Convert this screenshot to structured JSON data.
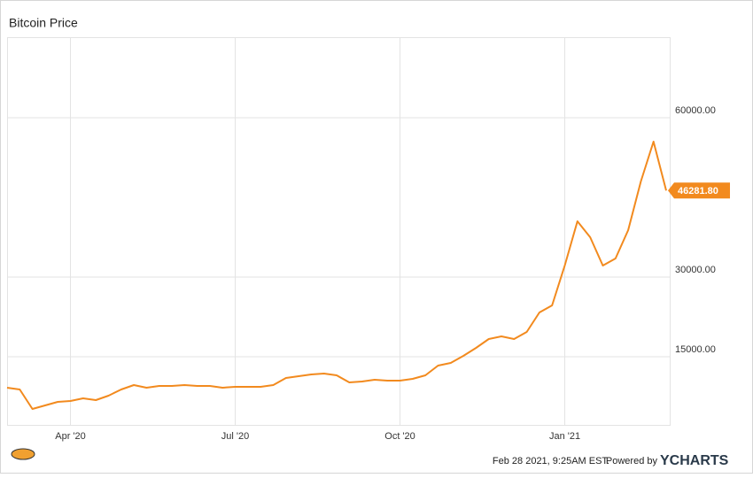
{
  "chart_data": {
    "type": "line",
    "title": "Bitcoin Price",
    "categories": [
      null,
      null,
      null,
      null,
      null,
      "Apr '20",
      null,
      null,
      null,
      null,
      null,
      null,
      null,
      null,
      null,
      null,
      null,
      null,
      "Jul '20",
      null,
      null,
      null,
      null,
      null,
      null,
      null,
      null,
      null,
      null,
      null,
      null,
      "Oct '20",
      null,
      null,
      null,
      null,
      null,
      null,
      null,
      null,
      null,
      null,
      null,
      null,
      "Jan '21",
      null,
      null,
      null,
      null,
      null,
      null,
      null,
      null
    ],
    "values": [
      9170,
      8830,
      5170,
      5830,
      6500,
      6670,
      7170,
      6830,
      7670,
      8830,
      9670,
      9170,
      9500,
      9500,
      9670,
      9500,
      9500,
      9170,
      9330,
      9330,
      9330,
      9670,
      11000,
      11330,
      11670,
      11830,
      11500,
      10170,
      10330,
      10670,
      10500,
      10500,
      10830,
      11500,
      13330,
      13830,
      15170,
      16670,
      18330,
      18830,
      18330,
      19670,
      23330,
      24670,
      32170,
      40500,
      37500,
      32170,
      33500,
      38830,
      48000,
      55500,
      46281.8
    ],
    "value_labels": [
      null,
      null,
      null,
      null,
      null,
      null,
      null,
      null,
      null,
      null,
      null,
      null,
      null,
      null,
      null,
      null,
      null,
      null,
      null,
      null,
      null,
      null,
      null,
      null,
      null,
      null,
      null,
      null,
      null,
      null,
      null,
      null,
      null,
      null,
      null,
      null,
      null,
      null,
      null,
      null,
      null,
      null,
      null,
      null,
      null,
      null,
      null,
      null,
      null,
      null,
      null,
      null,
      "46281.80"
    ],
    "color": "#f28a1e",
    "ylim": [
      2167,
      75167
    ],
    "yticks": [
      {
        "value": 15000,
        "label": "15000.00"
      },
      {
        "value": 30000,
        "label": "30000.00"
      },
      {
        "value": 60000,
        "label": "60000.00"
      }
    ],
    "grid": true
  },
  "footer": {
    "timestamp": "Feb 28 2021, 9:25AM EST.",
    "powered": "Powered by",
    "brand": "YCHARTS"
  }
}
